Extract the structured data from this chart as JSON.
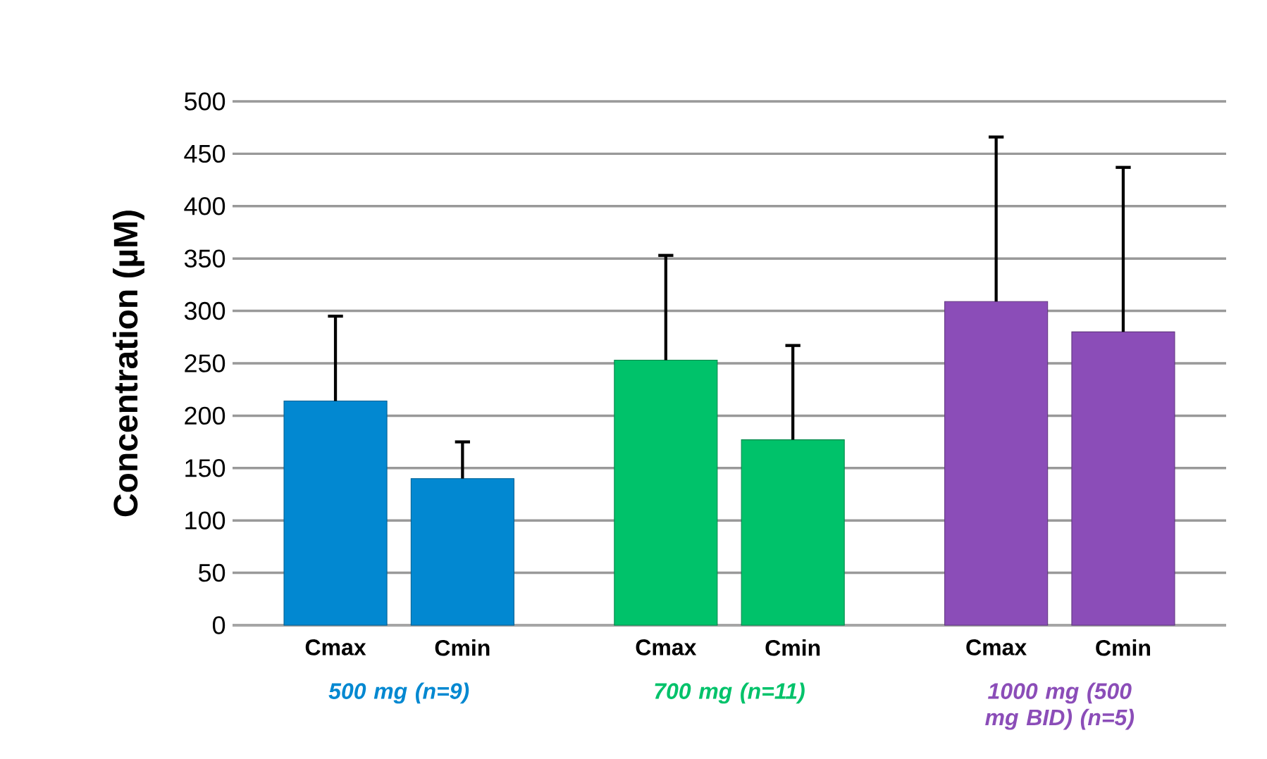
{
  "chart_data": {
    "type": "bar",
    "ylabel": "Concentration (µM)",
    "categories": [
      "Cmax",
      "Cmin",
      "Cmax",
      "Cmin",
      "Cmax",
      "Cmin"
    ],
    "values": [
      214,
      140,
      253,
      177,
      309,
      280
    ],
    "errors": [
      [
        214,
        295
      ],
      [
        140,
        175
      ],
      [
        253,
        353
      ],
      [
        177,
        267
      ],
      [
        309,
        466
      ],
      [
        280,
        437
      ]
    ],
    "colors": [
      "#0288d1",
      "#0288d1",
      "#00c26a",
      "#00c26a",
      "#8b4db8",
      "#8b4db8"
    ],
    "ylim": [
      0,
      500
    ],
    "yticks": [
      0,
      50,
      100,
      150,
      200,
      250,
      300,
      350,
      400,
      450,
      500
    ],
    "grid": "y",
    "annotations": [
      "*500 mg (n=9)*",
      "*700 mg (n=11)*",
      "*1000 mg (500 mg BID) (n=5)*"
    ]
  }
}
